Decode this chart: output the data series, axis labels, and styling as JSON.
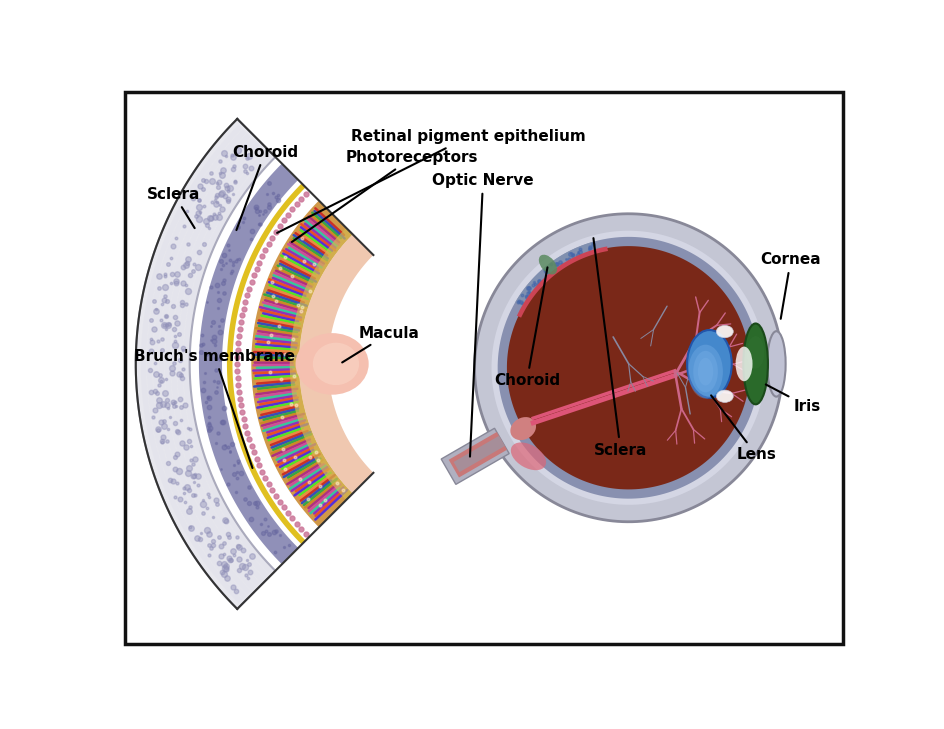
{
  "labels": {
    "choroid_left": "Choroid",
    "sclera_left": "Sclera",
    "rpe": "Retinal pigment epithelium",
    "photoreceptors": "Photoreceptors",
    "bruchs": "Bruch's membrane",
    "macula": "Macula",
    "choroid_right": "Choroid",
    "sclera_right": "Sclera",
    "lens": "Lens",
    "iris": "Iris",
    "cornea": "Cornea",
    "optic_nerve": "Optic Nerve"
  },
  "colors": {
    "white_bg": "#ffffff",
    "sclera_white": "#e8e8f0",
    "sclera_gray": "#c0c0d0",
    "choroid_purple": "#9090b8",
    "choroid_blue_dots": "#7070a8",
    "bruchs_yellow": "#e8c820",
    "rpe_pink_dots": "#cc8888",
    "photo_orange": "#e0a060",
    "photo_inner_tan": "#d4b870",
    "inner_pink": "#f5c8b0",
    "macula_pink": "#f0b8a8",
    "vitreous_dark": "#7a2a1a",
    "vitreous_mid": "#8B3520",
    "vitreous_light": "#a04030",
    "retina_red": "#cc4444",
    "choroid_right_blue": "#8090b0",
    "sclera_right_gray": "#b8bac8",
    "sclera_right_light": "#d0d2de",
    "optic_nerve_pink": "#d08888",
    "optic_nerve_gray": "#9898a8",
    "lens_blue": "#5588cc",
    "lens_light": "#88aadd",
    "iris_green": "#2d6e2d",
    "iris_dark": "#1a4a1a",
    "cornea_gray": "#b0b2c4",
    "blood_vessel_pink": "#cc6688",
    "blood_vessel_gray": "#8888a0",
    "cut_white": "#f0f0f8"
  },
  "font_size": 11,
  "figsize": [
    9.44,
    7.29
  ],
  "dpi": 100
}
